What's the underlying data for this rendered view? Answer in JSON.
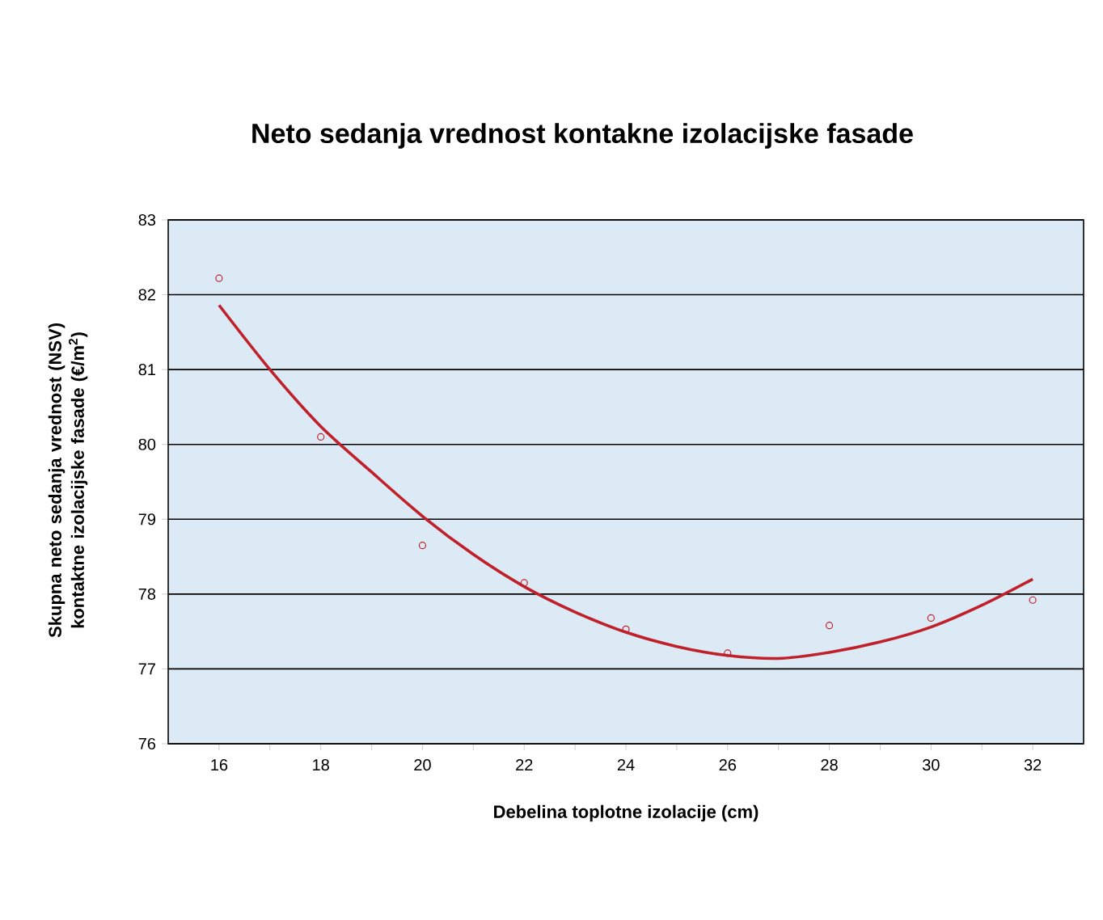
{
  "chart_data": {
    "type": "scatter",
    "title": "Neto sedanja vrednost kontakne izolacijske fasade",
    "xlabel": "Debelina toplotne izolacije (cm)",
    "ylabel": "Skupna neto sedanja vrednost (NSV) kontaktne izolacijske fasade (€/m$^{2}$)",
    "xlim": [
      15,
      33
    ],
    "ylim": [
      76,
      83
    ],
    "xticks": [
      16,
      {
        "value": 17,
        "label": null
      },
      18,
      {
        "value": 19,
        "label": null
      },
      20,
      {
        "value": 21,
        "label": null
      },
      22,
      {
        "value": 23,
        "label": null
      },
      24,
      {
        "value": 25,
        "label": null
      },
      26,
      {
        "value": 27,
        "label": null
      },
      28,
      {
        "value": 29,
        "label": null
      },
      30,
      {
        "value": 31,
        "label": null
      },
      32
    ],
    "yticks": [
      76,
      77,
      78,
      79,
      80,
      81,
      82,
      83
    ],
    "grid": "y",
    "series": [
      {
        "color": "#c0202a",
        "marker": "circle",
        "x": [
          16,
          18,
          20,
          22,
          24,
          26,
          28,
          30,
          32
        ],
        "values": [
          82.22,
          80.1,
          78.65,
          78.15,
          77.53,
          77.21,
          77.58,
          77.68,
          77.92
        ]
      },
      {
        "type": "line",
        "color": "#c0202a",
        "marker": "none",
        "x": [
          16,
          17,
          18,
          19,
          20,
          21,
          22,
          23,
          24,
          25,
          26,
          27,
          28,
          29,
          30,
          31,
          32
        ],
        "values": [
          81.86,
          81.0,
          80.24,
          79.63,
          79.04,
          78.53,
          78.1,
          77.76,
          77.49,
          77.3,
          77.18,
          77.14,
          77.22,
          77.36,
          77.56,
          77.85,
          78.2
        ]
      }
    ]
  }
}
